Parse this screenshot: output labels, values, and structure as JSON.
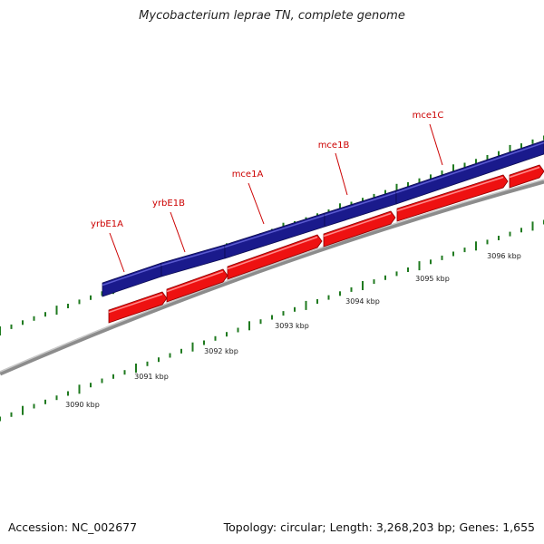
{
  "title": "Mycobacterium leprae TN, complete genome",
  "footer": {
    "accession": "Accession: NC_002677",
    "summary": "Topology: circular; Length: 3,268,203 bp; Genes: 1,655"
  },
  "colors": {
    "forward_gene": "#1a1a8c",
    "reverse_gene": "#ee1111",
    "gene_label": "#cc0000",
    "tick": "#1f7a1f",
    "backbone": "#8c8c8c"
  },
  "genes": [
    {
      "name": "yrbE1A",
      "strand": "forward"
    },
    {
      "name": "yrbE1B",
      "strand": "forward"
    },
    {
      "name": "mce1A",
      "strand": "forward"
    },
    {
      "name": "mce1B",
      "strand": "forward"
    },
    {
      "name": "mce1C",
      "strand": "forward"
    }
  ],
  "scale_labels": [
    "3090 kbp",
    "3091 kbp",
    "3092 kbp",
    "3093 kbp",
    "3094 kbp",
    "3095 kbp",
    "3096 kbp"
  ]
}
